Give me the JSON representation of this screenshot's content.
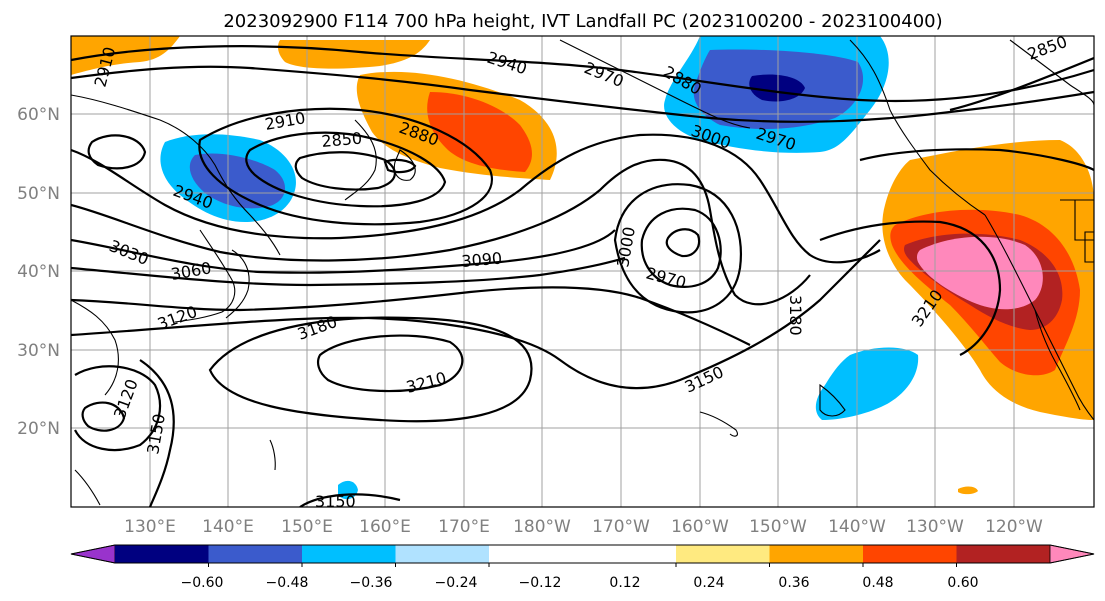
{
  "title": "2023092900 F114 700 hPa height, IVT Landfall PC (2023100200 - 2023100400)",
  "lat_labels": [
    "60°N",
    "50°N",
    "40°N",
    "30°N",
    "20°N"
  ],
  "lon_labels": [
    "130°E",
    "140°E",
    "150°E",
    "160°E",
    "170°E",
    "180°W",
    "170°W",
    "160°W",
    "150°W",
    "140°W",
    "130°W",
    "120°W"
  ],
  "colorbar": {
    "colors": [
      "#9933cc",
      "#000080",
      "#3b5bcc",
      "#00bfff",
      "#b0e2ff",
      "#ffffff",
      "#ffffff",
      "#ffea80",
      "#ffa500",
      "#ff4500",
      "#b22222",
      "#ff88bb"
    ],
    "ticks": [
      "−0.60",
      "−0.48",
      "−0.36",
      "−0.24",
      "−0.12",
      "0.12",
      "0.24",
      "0.36",
      "0.48",
      "0.60"
    ]
  },
  "contour_labels": [
    "2910",
    "2940",
    "2970",
    "2880",
    "2850",
    "2910",
    "2850",
    "2880",
    "3000",
    "2970",
    "2940",
    "3030",
    "3060",
    "3120",
    "3090",
    "3000",
    "2970",
    "3180",
    "3210",
    "3150",
    "3180",
    "3210",
    "3120",
    "3150",
    "3150",
    "2850"
  ]
}
